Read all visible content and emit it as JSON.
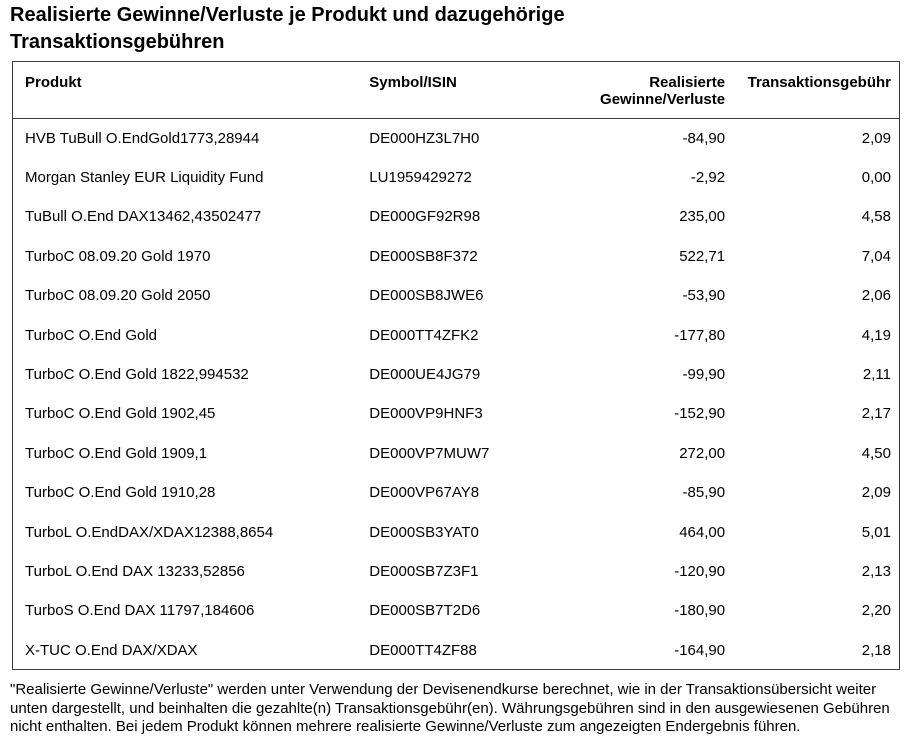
{
  "title": "Realisierte Gewinne/Verluste je Produkt und dazugehörige Transaktionsgebühren",
  "table": {
    "headers": {
      "produkt": "Produkt",
      "symbol_isin": "Symbol/ISIN",
      "realisierte": "Realisierte Gewinne/Verluste",
      "gebuehr": "Transaktionsgebühr"
    },
    "rows": [
      {
        "produkt": "HVB TuBull O.EndGold1773,28944",
        "symbol_isin": "DE000HZ3L7H0",
        "realisierte": "-84,90",
        "gebuehr": "2,09"
      },
      {
        "produkt": "Morgan Stanley EUR Liquidity Fund",
        "symbol_isin": "LU1959429272",
        "realisierte": "-2,92",
        "gebuehr": "0,00"
      },
      {
        "produkt": "TuBull O.End DAX13462,43502477",
        "symbol_isin": "DE000GF92R98",
        "realisierte": "235,00",
        "gebuehr": "4,58"
      },
      {
        "produkt": "TurboC 08.09.20 Gold 1970",
        "symbol_isin": "DE000SB8F372",
        "realisierte": "522,71",
        "gebuehr": "7,04"
      },
      {
        "produkt": "TurboC 08.09.20 Gold 2050",
        "symbol_isin": "DE000SB8JWE6",
        "realisierte": "-53,90",
        "gebuehr": "2,06"
      },
      {
        "produkt": "TurboC O.End Gold",
        "symbol_isin": "DE000TT4ZFK2",
        "realisierte": "-177,80",
        "gebuehr": "4,19"
      },
      {
        "produkt": "TurboC O.End Gold 1822,994532",
        "symbol_isin": "DE000UE4JG79",
        "realisierte": "-99,90",
        "gebuehr": "2,11"
      },
      {
        "produkt": "TurboC O.End Gold 1902,45",
        "symbol_isin": "DE000VP9HNF3",
        "realisierte": "-152,90",
        "gebuehr": "2,17"
      },
      {
        "produkt": "TurboC O.End Gold 1909,1",
        "symbol_isin": "DE000VP7MUW7",
        "realisierte": "272,00",
        "gebuehr": "4,50"
      },
      {
        "produkt": "TurboC O.End Gold 1910,28",
        "symbol_isin": "DE000VP67AY8",
        "realisierte": "-85,90",
        "gebuehr": "2,09"
      },
      {
        "produkt": "TurboL O.EndDAX/XDAX12388,8654",
        "symbol_isin": "DE000SB3YAT0",
        "realisierte": "464,00",
        "gebuehr": "5,01"
      },
      {
        "produkt": "TurboL O.End DAX 13233,52856",
        "symbol_isin": "DE000SB7Z3F1",
        "realisierte": "-120,90",
        "gebuehr": "2,13"
      },
      {
        "produkt": "TurboS O.End DAX 11797,184606",
        "symbol_isin": "DE000SB7T2D6",
        "realisierte": "-180,90",
        "gebuehr": "2,20"
      },
      {
        "produkt": "X-TUC O.End DAX/XDAX",
        "symbol_isin": "DE000TT4ZF88",
        "realisierte": "-164,90",
        "gebuehr": "2,18"
      }
    ]
  },
  "footnote": "\"Realisierte Gewinne/Verluste\" werden unter Verwendung der Devisenendkurse berechnet, wie in der Transaktionsübersicht weiter unten dargestellt, und beinhalten die gezahlte(n) Transaktionsgebühr(en). Währungsgebühren sind in den ausgewiesenen Gebühren nicht enthalten. Bei jedem Produkt können mehrere realisierte Gewinne/Verluste zum angezeigten Endergebnis führen."
}
